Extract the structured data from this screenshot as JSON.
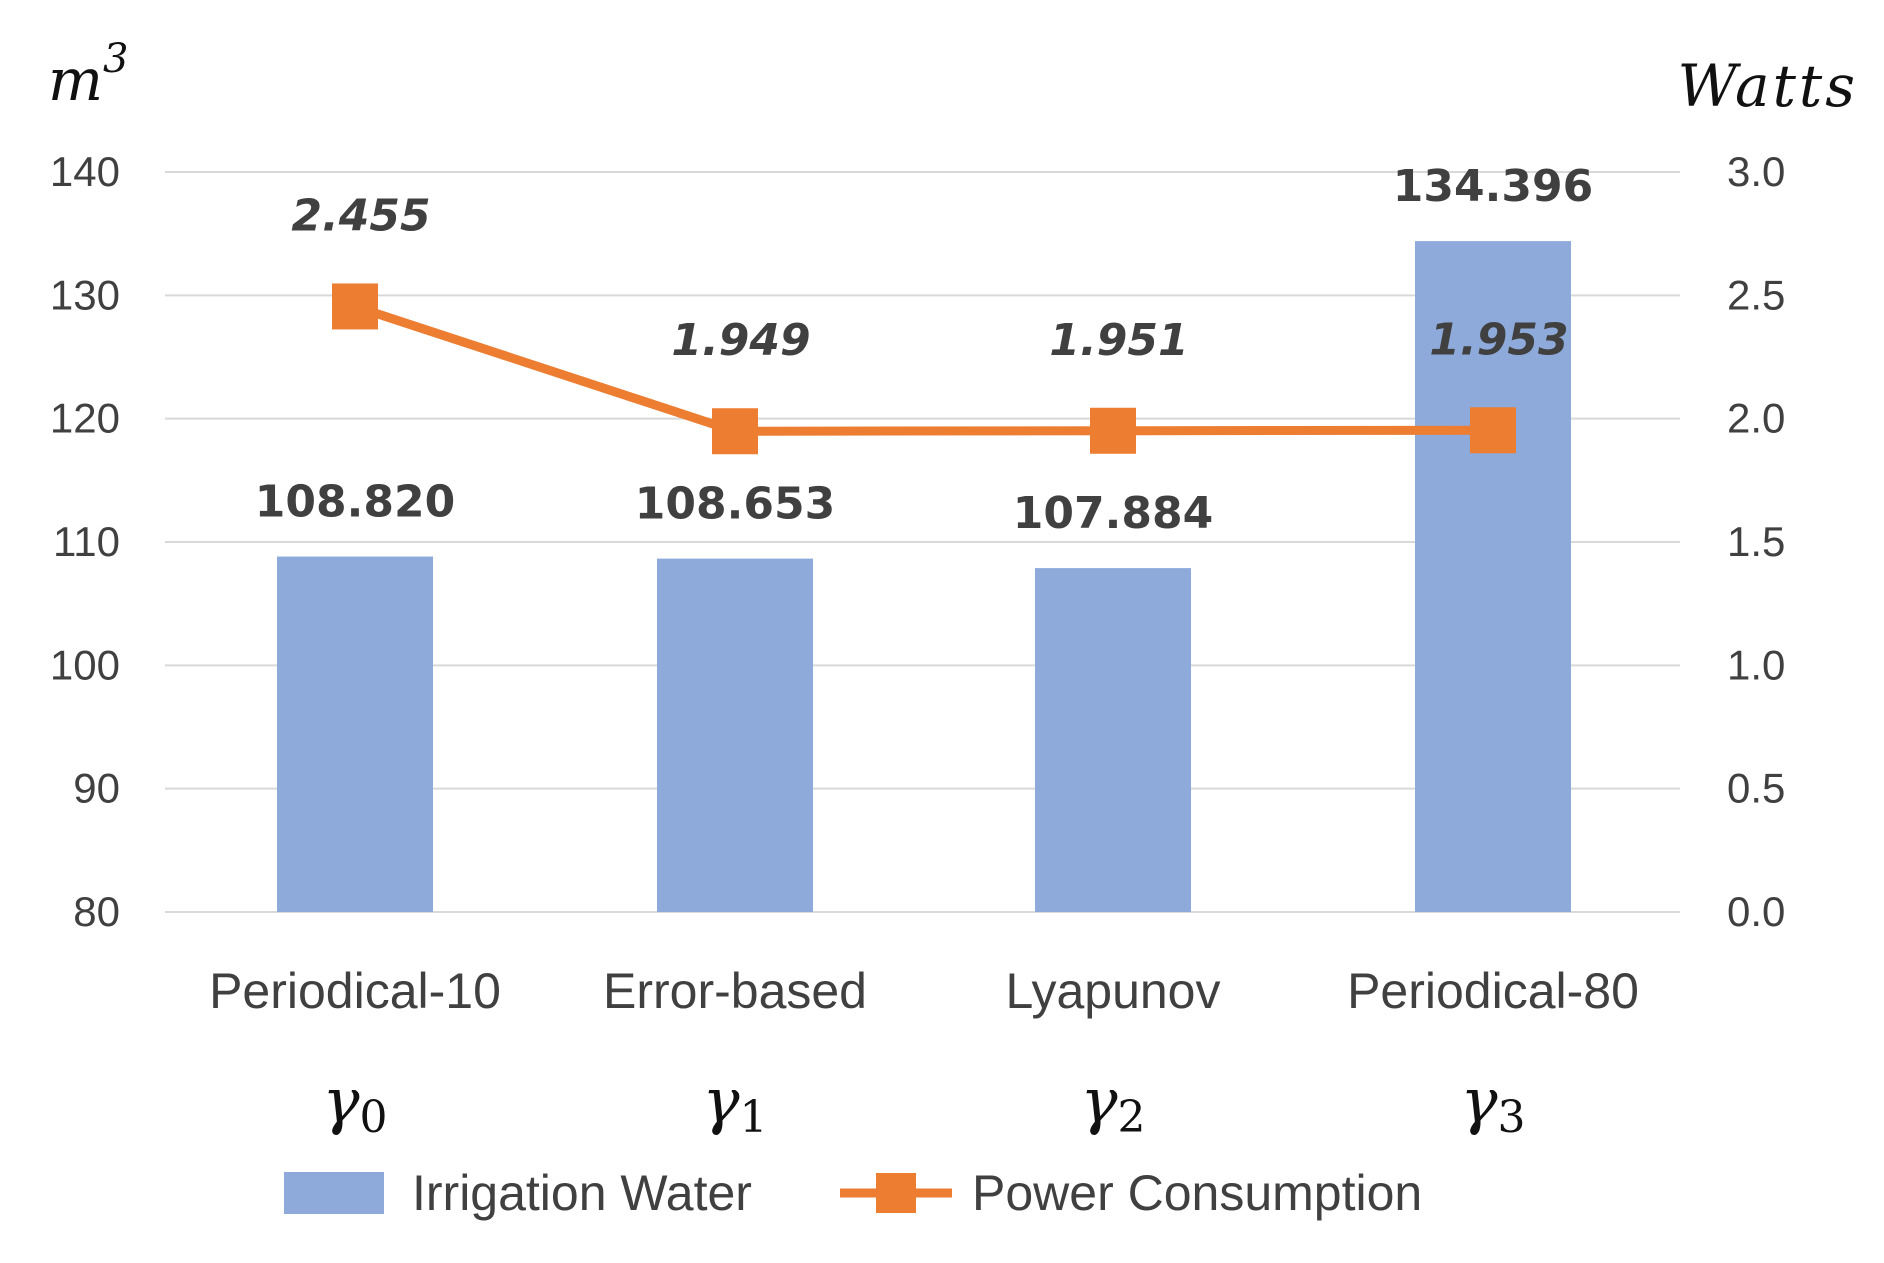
{
  "chart_data": {
    "type": "bar+line",
    "categories": [
      "Periodical-10",
      "Error-based",
      "Lyapunov",
      "Periodical-80"
    ],
    "category_symbols": [
      {
        "base": "γ",
        "sub": "0"
      },
      {
        "base": "γ",
        "sub": "1"
      },
      {
        "base": "γ",
        "sub": "2"
      },
      {
        "base": "γ",
        "sub": "3"
      }
    ],
    "series": [
      {
        "name": "Irrigation Water",
        "type": "bar",
        "axis": "left",
        "values": [
          108.82,
          108.653,
          107.884,
          134.396
        ],
        "labels": [
          "108.820",
          "108.653",
          "107.884",
          "134.396"
        ],
        "color": "#8eaadb"
      },
      {
        "name": "Power Consumption",
        "type": "line",
        "axis": "right",
        "values": [
          2.455,
          1.949,
          1.951,
          1.953
        ],
        "labels": [
          "2.455",
          "1.949",
          "1.951",
          "1.953"
        ],
        "color": "#ed7d31"
      }
    ],
    "y_left": {
      "label_base": "m",
      "label_sup": "3",
      "ylim": [
        80,
        140
      ],
      "ticks": [
        80,
        90,
        100,
        110,
        120,
        130,
        140
      ],
      "tick_labels": [
        "80",
        "90",
        "100",
        "110",
        "120",
        "130",
        "140"
      ]
    },
    "y_right": {
      "label": "Watts",
      "ylim": [
        0,
        3
      ],
      "ticks": [
        0,
        0.5,
        1,
        1.5,
        2,
        2.5,
        3
      ],
      "tick_labels": [
        "0.0",
        "0.5",
        "1.0",
        "1.5",
        "2.0",
        "2.5",
        "3.0"
      ]
    },
    "grid": true,
    "legend_position": "bottom",
    "gridline_color": "#d9d9d9"
  }
}
